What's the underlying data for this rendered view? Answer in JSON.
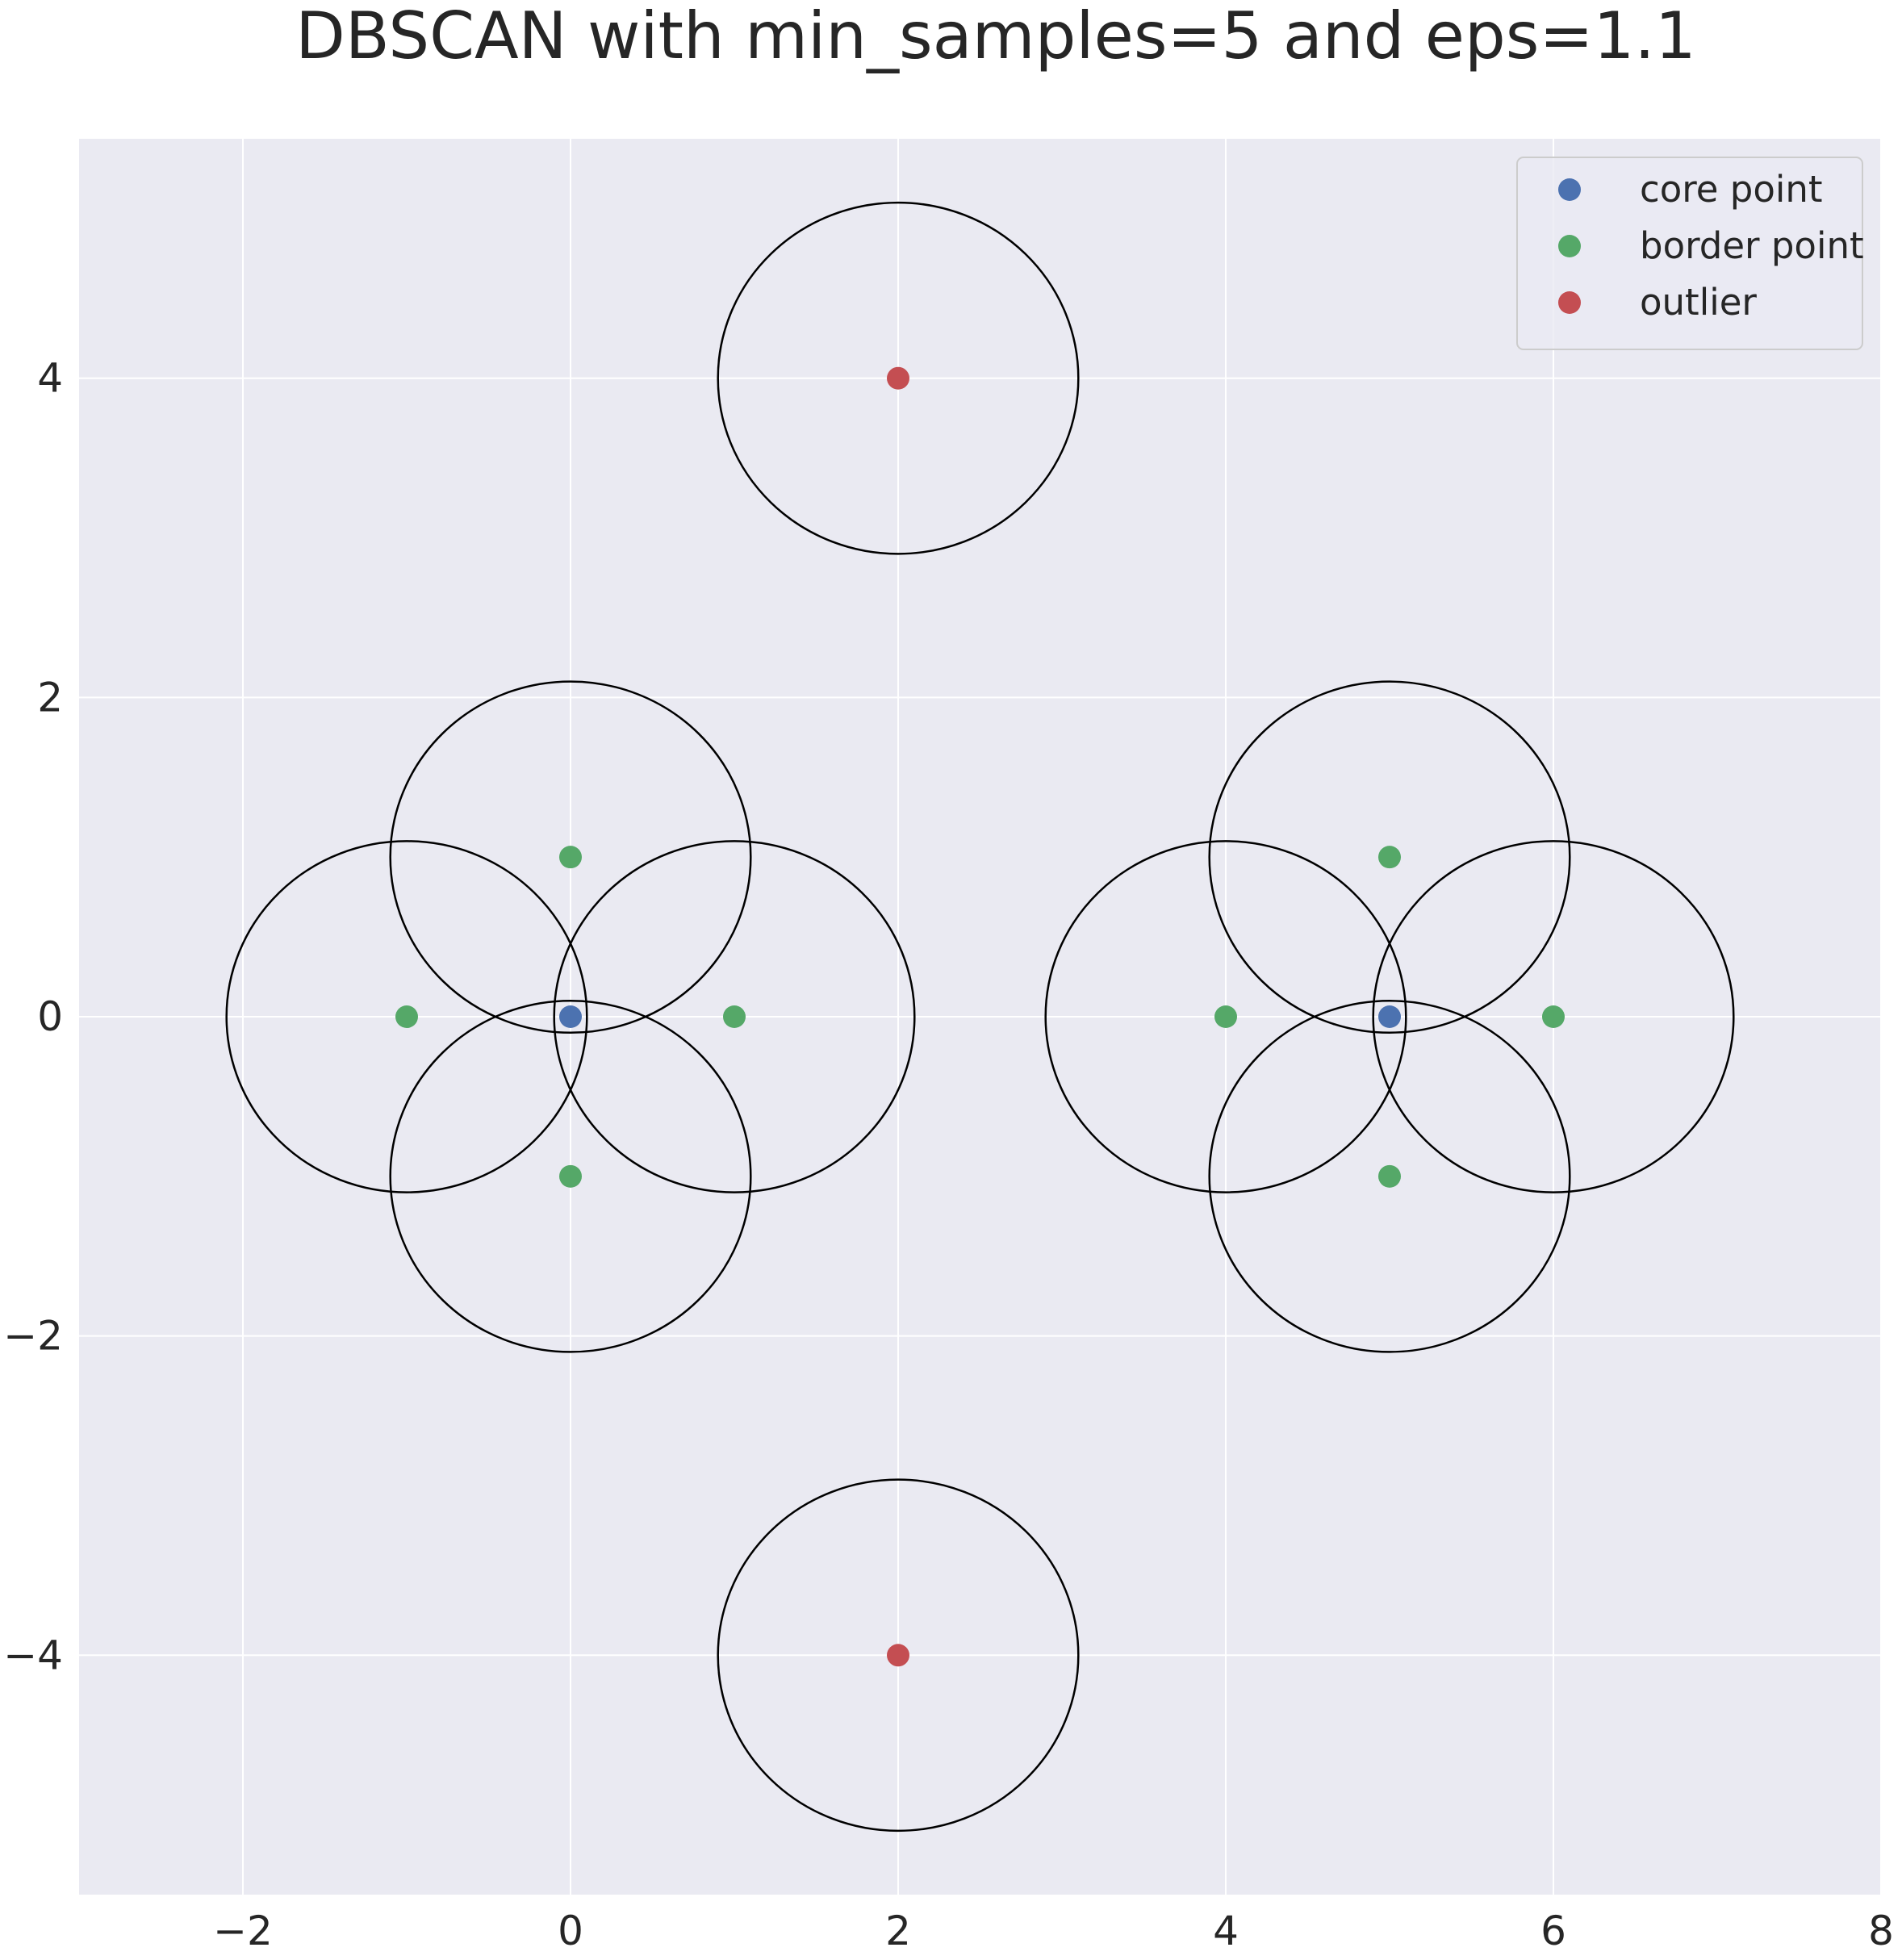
{
  "chart_data": {
    "type": "scatter",
    "title": "DBSCAN with min_samples=5 and eps=1.1",
    "xlabel": "",
    "ylabel": "",
    "xlim": [
      -3,
      8
    ],
    "ylim": [
      -5.5,
      5.5
    ],
    "x_ticks": [
      -2,
      0,
      2,
      4,
      6,
      8
    ],
    "y_ticks": [
      -4,
      -2,
      0,
      2,
      4
    ],
    "x_tick_labels": [
      "−2",
      "0",
      "2",
      "4",
      "6",
      "8"
    ],
    "y_tick_labels": [
      "−4",
      "−2",
      "0",
      "2",
      "4"
    ],
    "grid": true,
    "legend_position": "top-right",
    "eps": 1.1,
    "background_color": "#eaeaf2",
    "grid_color": "#ffffff",
    "circle_color": "#000000",
    "series": [
      {
        "name": "core point",
        "color": "#4c72b0",
        "points": [
          [
            0,
            0
          ],
          [
            5,
            0
          ]
        ]
      },
      {
        "name": "border point",
        "color": "#55a868",
        "points": [
          [
            -1,
            0
          ],
          [
            1,
            0
          ],
          [
            0,
            1
          ],
          [
            0,
            -1
          ],
          [
            4,
            0
          ],
          [
            6,
            0
          ],
          [
            5,
            1
          ],
          [
            5,
            -1
          ]
        ]
      },
      {
        "name": "outlier",
        "color": "#c44e52",
        "points": [
          [
            2,
            4
          ],
          [
            2,
            -4
          ]
        ]
      }
    ]
  }
}
